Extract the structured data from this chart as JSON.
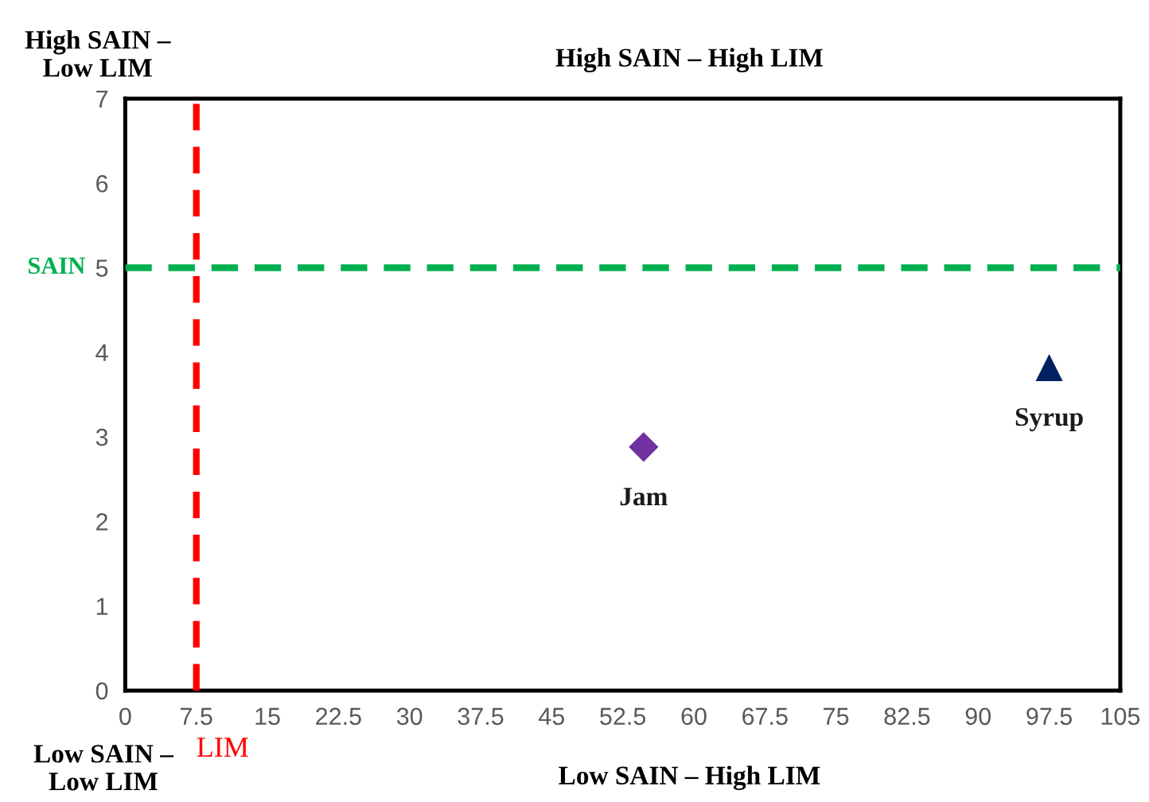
{
  "chart_data": {
    "type": "scatter",
    "annotations": [
      "High SAIN –\nLow LIM",
      "High SAIN – High LIM",
      "Low SAIN –\nLow LIM",
      "Low SAIN – High LIM"
    ],
    "series": [
      {
        "name": "Jam",
        "color": "#7030a0",
        "x": [
          54.7
        ],
        "values": [
          2.88
        ],
        "marker": "diamond"
      },
      {
        "name": "Syrup",
        "color": "#002060",
        "x": [
          97.5
        ],
        "values": [
          3.82
        ],
        "marker": "triangle"
      }
    ],
    "xlim": [
      0,
      105
    ],
    "xticks": [
      0,
      7.5,
      15,
      22.5,
      30,
      37.5,
      45,
      52.5,
      60,
      67.5,
      75,
      82.5,
      90,
      97.5,
      105
    ],
    "ylim": [
      0,
      7
    ],
    "yticks": [
      0,
      1,
      2,
      3,
      4,
      5,
      6,
      7
    ],
    "ref_lines": [
      {
        "axis": "y",
        "value": 5,
        "label": "SAIN",
        "color": "#00b050",
        "line_style": "dashed"
      },
      {
        "axis": "x",
        "value": 7.5,
        "label": "LIM",
        "color": "#ff0000",
        "line_style": "dashed"
      }
    ],
    "grid": false,
    "legend": false
  }
}
